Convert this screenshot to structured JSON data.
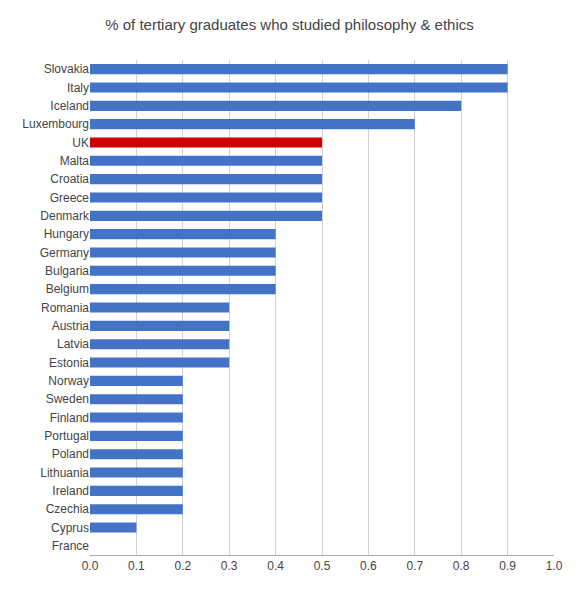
{
  "chart_data": {
    "type": "bar",
    "orientation": "horizontal",
    "title": "% of tertiary graduates who studied philosophy & ethics",
    "categories": [
      "Slovakia",
      "Italy",
      "Iceland",
      "Luxembourg",
      "UK",
      "Malta",
      "Croatia",
      "Greece",
      "Denmark",
      "Hungary",
      "Germany",
      "Bulgaria",
      "Belgium",
      "Romania",
      "Austria",
      "Latvia",
      "Estonia",
      "Norway",
      "Sweden",
      "Finland",
      "Portugal",
      "Poland",
      "Lithuania",
      "Ireland",
      "Czechia",
      "Cyprus",
      "France"
    ],
    "values": [
      0.9,
      0.9,
      0.8,
      0.7,
      0.5,
      0.5,
      0.5,
      0.5,
      0.5,
      0.4,
      0.4,
      0.4,
      0.4,
      0.3,
      0.3,
      0.3,
      0.3,
      0.2,
      0.2,
      0.2,
      0.2,
      0.2,
      0.2,
      0.2,
      0.2,
      0.1,
      0.0
    ],
    "colors": [
      "#4472C4",
      "#4472C4",
      "#4472C4",
      "#4472C4",
      "#CC0000",
      "#4472C4",
      "#4472C4",
      "#4472C4",
      "#4472C4",
      "#4472C4",
      "#4472C4",
      "#4472C4",
      "#4472C4",
      "#4472C4",
      "#4472C4",
      "#4472C4",
      "#4472C4",
      "#4472C4",
      "#4472C4",
      "#4472C4",
      "#4472C4",
      "#4472C4",
      "#4472C4",
      "#4472C4",
      "#4472C4",
      "#4472C4",
      "#4472C4"
    ],
    "xlim": [
      0.0,
      1.0
    ],
    "xticks": [
      {
        "value": 0,
        "label": "0.0"
      },
      0.1,
      0.2,
      0.3,
      0.4,
      0.5,
      0.6,
      0.7,
      0.8,
      0.9,
      {
        "value": 1,
        "label": "1.0"
      }
    ],
    "grid": true
  }
}
